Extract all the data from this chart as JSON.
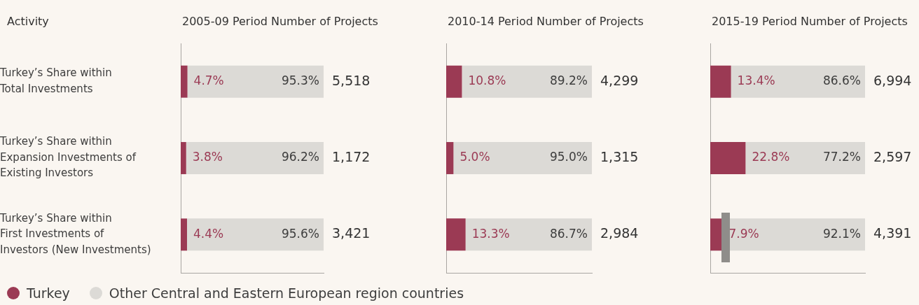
{
  "chart_data": [
    {
      "type": "bar",
      "orientation": "horizontal",
      "stacked": true,
      "title": "2005-09 Period Number of Projects",
      "ylabel": "Activity",
      "categories": [
        "Turkey’s Share within\nTotal Investments",
        "Turkey’s Share within\nExpansion Investments of\nExisting Investors",
        "Turkey’s Share within\nFirst Investments of\nInvestors (New Investments)"
      ],
      "xlim": [
        0,
        100
      ],
      "tick_labels": "y",
      "legend": "bottom",
      "series": [
        {
          "name": "Turkey",
          "color": "#9b3a54",
          "values": [
            4.7,
            3.8,
            4.4
          ],
          "value_labels": [
            "4.7%",
            "3.8%",
            "4.4%"
          ]
        },
        {
          "name": "Other Central and Eastern European region countries",
          "color": "#dcdad6",
          "values": [
            95.3,
            96.2,
            95.6
          ],
          "value_labels": [
            "95.3%",
            "96.2%",
            "95.6%"
          ]
        }
      ],
      "annotations": [
        "5,518",
        "1,172",
        "3,421"
      ]
    },
    {
      "type": "bar",
      "orientation": "horizontal",
      "stacked": true,
      "title": "2010-14 Period Number of Projects",
      "categories": [
        null,
        null,
        null
      ],
      "xlim": [
        0,
        100
      ],
      "tick_labels": false,
      "series": [
        {
          "color": "#9b3a54",
          "values": [
            10.8,
            5.0,
            13.3
          ],
          "value_labels": [
            "10.8%",
            "5.0%",
            "13.3%"
          ]
        },
        {
          "color": "#dcdad6",
          "values": [
            89.2,
            95.0,
            86.7
          ],
          "value_labels": [
            "89.2%",
            "95.0%",
            "86.7%"
          ]
        }
      ],
      "annotations": [
        "4,299",
        "1,315",
        "2,984"
      ]
    },
    {
      "type": "bar",
      "orientation": "horizontal",
      "stacked": true,
      "title": "2015-19 Period Number of Projects",
      "categories": [
        null,
        null,
        null
      ],
      "xlim": [
        0,
        100
      ],
      "tick_labels": false,
      "series": [
        {
          "color": "#9b3a54",
          "values": [
            13.4,
            22.8,
            7.9
          ],
          "value_labels": [
            "13.4%",
            "22.8%",
            "7.9%"
          ]
        },
        {
          "color": "#dcdad6",
          "values": [
            86.6,
            77.2,
            92.1
          ],
          "value_labels": [
            "86.6%",
            "77.2%",
            "92.1%"
          ]
        }
      ],
      "annotations": [
        "6,994",
        "2,597",
        "4,391"
      ]
    }
  ]
}
